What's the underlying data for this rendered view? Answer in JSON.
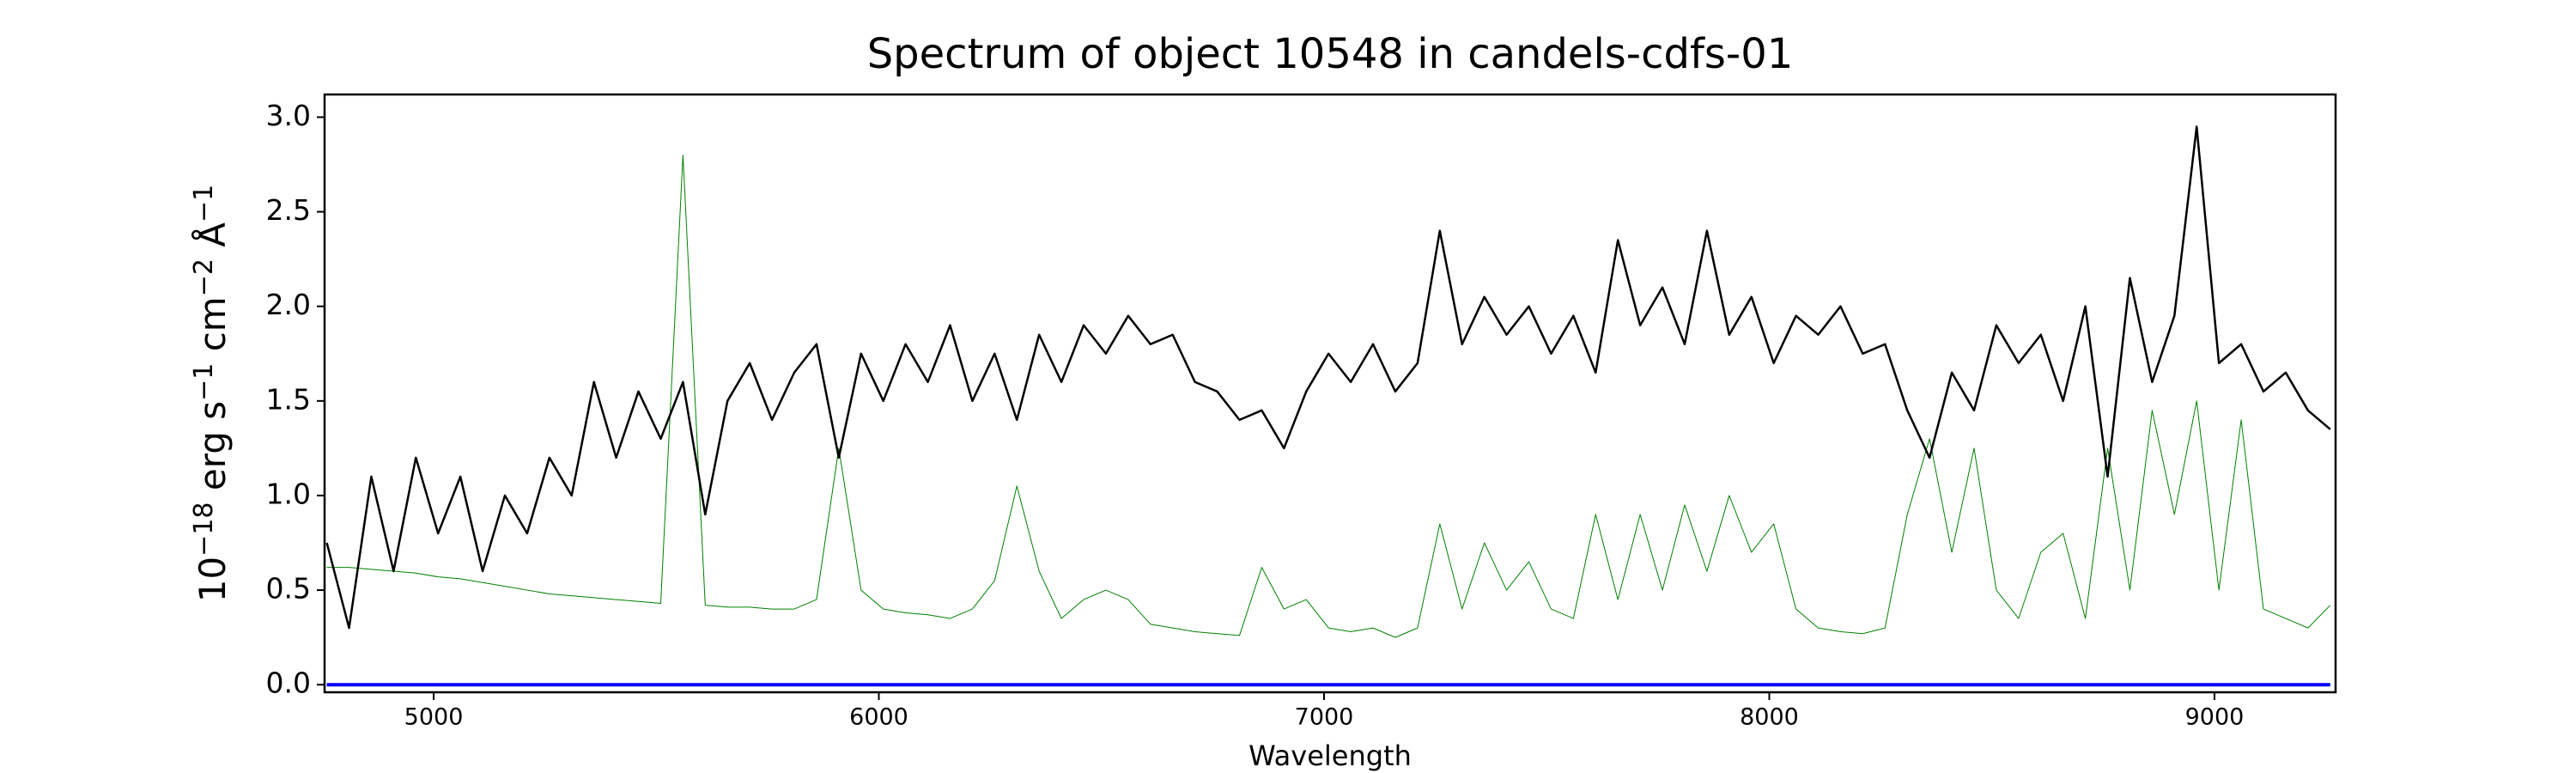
{
  "chart_data": {
    "type": "line",
    "title": "Spectrum of object 10548 in candels-cdfs-01",
    "xlabel": "Wavelength",
    "ylabel": [
      "10",
      "−18",
      " erg s",
      "−1",
      " cm",
      "−2",
      " Å",
      "−1"
    ],
    "x": [
      4760,
      4810,
      4860,
      4910,
      4960,
      5010,
      5060,
      5110,
      5160,
      5210,
      5260,
      5310,
      5360,
      5410,
      5460,
      5510,
      5560,
      5610,
      5660,
      5710,
      5760,
      5810,
      5860,
      5910,
      5960,
      6010,
      6060,
      6110,
      6160,
      6210,
      6260,
      6310,
      6360,
      6410,
      6460,
      6510,
      6560,
      6610,
      6660,
      6710,
      6760,
      6810,
      6860,
      6910,
      6960,
      7010,
      7060,
      7110,
      7160,
      7210,
      7260,
      7310,
      7360,
      7410,
      7460,
      7510,
      7560,
      7610,
      7660,
      7710,
      7760,
      7810,
      7860,
      7910,
      7960,
      8010,
      8060,
      8110,
      8160,
      8210,
      8260,
      8310,
      8360,
      8410,
      8460,
      8510,
      8560,
      8610,
      8660,
      8710,
      8760,
      8810,
      8860,
      8910,
      8960,
      9010,
      9060,
      9110,
      9160,
      9210,
      9260
    ],
    "series": [
      {
        "color": "#008000",
        "width": 1,
        "values": [
          0.62,
          0.62,
          0.61,
          0.6,
          0.59,
          0.57,
          0.56,
          0.54,
          0.52,
          0.5,
          0.48,
          0.47,
          0.46,
          0.45,
          0.44,
          0.43,
          2.8,
          0.42,
          0.41,
          0.41,
          0.4,
          0.4,
          0.45,
          1.25,
          0.5,
          0.4,
          0.38,
          0.37,
          0.35,
          0.4,
          0.55,
          1.05,
          0.6,
          0.35,
          0.45,
          0.5,
          0.45,
          0.32,
          0.3,
          0.28,
          0.27,
          0.26,
          0.62,
          0.4,
          0.45,
          0.3,
          0.28,
          0.3,
          0.25,
          0.3,
          0.85,
          0.4,
          0.75,
          0.5,
          0.65,
          0.4,
          0.35,
          0.9,
          0.45,
          0.9,
          0.5,
          0.95,
          0.6,
          1.0,
          0.7,
          0.85,
          0.4,
          0.3,
          0.28,
          0.27,
          0.3,
          0.9,
          1.3,
          0.7,
          1.25,
          0.5,
          0.35,
          0.7,
          0.8,
          0.35,
          1.25,
          0.5,
          1.45,
          0.9,
          1.5,
          0.5,
          1.4,
          0.4,
          0.35,
          0.3,
          0.42
        ]
      },
      {
        "color": "#000000",
        "width": 2.5,
        "values": [
          0.75,
          0.3,
          1.1,
          0.6,
          1.2,
          0.8,
          1.1,
          0.6,
          1.0,
          0.8,
          1.2,
          1.0,
          1.6,
          1.2,
          1.55,
          1.3,
          1.6,
          0.9,
          1.5,
          1.7,
          1.4,
          1.65,
          1.8,
          1.2,
          1.75,
          1.5,
          1.8,
          1.6,
          1.9,
          1.5,
          1.75,
          1.4,
          1.85,
          1.6,
          1.9,
          1.75,
          1.95,
          1.8,
          1.85,
          1.6,
          1.55,
          1.4,
          1.45,
          1.25,
          1.55,
          1.75,
          1.6,
          1.8,
          1.55,
          1.7,
          2.4,
          1.8,
          2.05,
          1.85,
          2.0,
          1.75,
          1.95,
          1.65,
          2.35,
          1.9,
          2.1,
          1.8,
          2.4,
          1.85,
          2.05,
          1.7,
          1.95,
          1.85,
          2.0,
          1.75,
          1.8,
          1.45,
          1.2,
          1.65,
          1.45,
          1.9,
          1.7,
          1.85,
          1.5,
          2.0,
          1.1,
          2.15,
          1.6,
          1.95,
          2.95,
          1.7,
          1.8,
          1.55,
          1.65,
          1.45,
          1.35
        ]
      },
      {
        "color": "#0000ff",
        "width": 4,
        "values": [
          0,
          0,
          0,
          0,
          0,
          0,
          0,
          0,
          0,
          0,
          0,
          0,
          0,
          0,
          0,
          0,
          0,
          0,
          0,
          0,
          0,
          0,
          0,
          0,
          0,
          0,
          0,
          0,
          0,
          0,
          0,
          0,
          0,
          0,
          0,
          0,
          0,
          0,
          0,
          0,
          0,
          0,
          0,
          0,
          0,
          0,
          0,
          0,
          0,
          0,
          0,
          0,
          0,
          0,
          0,
          0,
          0,
          0,
          0,
          0,
          0,
          0,
          0,
          0,
          0,
          0,
          0,
          0,
          0,
          0,
          0,
          0,
          0,
          0,
          0,
          0,
          0,
          0,
          0,
          0,
          0,
          0,
          0,
          0,
          0,
          0,
          0,
          0,
          0,
          0,
          0
        ]
      }
    ],
    "xlim": [
      4755,
      9272
    ],
    "ylim": [
      -0.04,
      3.12
    ],
    "xticks": [
      5000,
      6000,
      7000,
      8000,
      9000
    ],
    "yticks": [
      {
        "value": 0,
        "label": "0.0"
      },
      0.5,
      {
        "value": 1,
        "label": "1.0"
      },
      1.5,
      {
        "value": 2,
        "label": "2.0"
      },
      2.5,
      {
        "value": 3,
        "label": "3.0"
      }
    ],
    "grid": false
  }
}
